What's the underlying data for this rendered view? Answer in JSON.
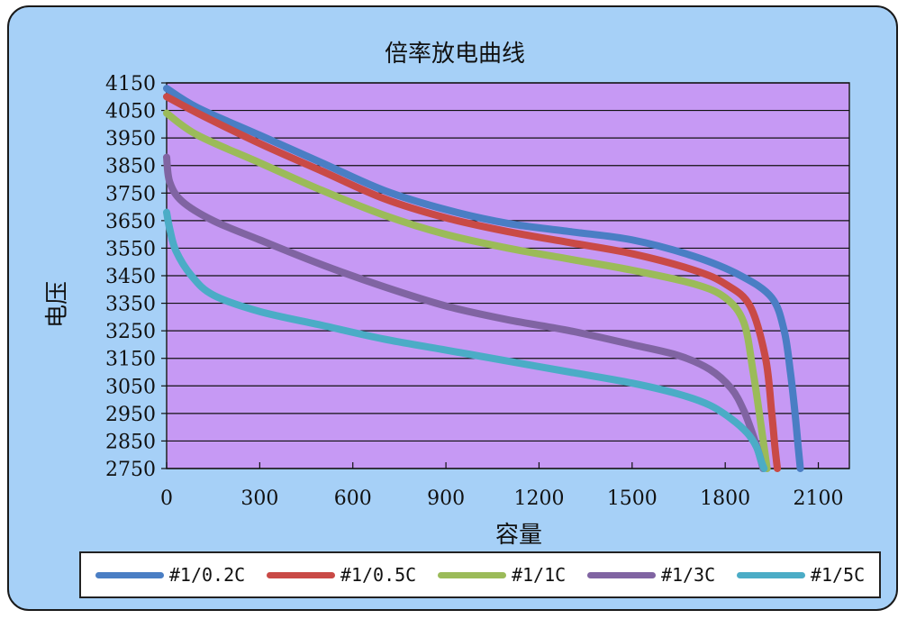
{
  "chart_data": {
    "type": "line",
    "title": "倍率放电曲线",
    "xlabel": "容量",
    "ylabel": "电压",
    "xlim": [
      0,
      2200
    ],
    "ylim": [
      2750,
      4150
    ],
    "x_ticks": [
      0,
      300,
      600,
      900,
      1200,
      1500,
      1800,
      2100
    ],
    "y_ticks": [
      2750,
      2850,
      2950,
      3050,
      3150,
      3250,
      3350,
      3450,
      3550,
      3650,
      3750,
      3850,
      3950,
      4050,
      4150
    ],
    "grid": "horizontal",
    "legend_position": "bottom",
    "series": [
      {
        "name": "#1/0.2C",
        "color": "#4a7ec4",
        "x": [
          0,
          100,
          300,
          500,
          700,
          900,
          1100,
          1300,
          1500,
          1700,
          1850,
          1950,
          1990,
          2010,
          2025,
          2035,
          2042
        ],
        "y": [
          4130,
          4060,
          3960,
          3860,
          3760,
          3690,
          3640,
          3610,
          3580,
          3520,
          3450,
          3370,
          3250,
          3100,
          2950,
          2830,
          2750
        ]
      },
      {
        "name": "#1/0.5C",
        "color": "#c94a46",
        "x": [
          0,
          100,
          300,
          500,
          700,
          900,
          1100,
          1300,
          1500,
          1700,
          1800,
          1880,
          1930,
          1950,
          1960,
          1968
        ],
        "y": [
          4100,
          4040,
          3930,
          3830,
          3730,
          3660,
          3610,
          3570,
          3530,
          3470,
          3420,
          3340,
          3150,
          2950,
          2830,
          2750
        ]
      },
      {
        "name": "#1/1C",
        "color": "#9bbb59",
        "x": [
          0,
          100,
          300,
          500,
          700,
          900,
          1100,
          1300,
          1500,
          1700,
          1800,
          1860,
          1890,
          1910,
          1925,
          1935
        ],
        "y": [
          4040,
          3960,
          3860,
          3760,
          3670,
          3600,
          3550,
          3510,
          3470,
          3420,
          3370,
          3280,
          3100,
          2950,
          2830,
          2750
        ]
      },
      {
        "name": "#1/3C",
        "color": "#8064a2",
        "x": [
          0,
          10,
          50,
          150,
          300,
          500,
          700,
          900,
          1100,
          1300,
          1500,
          1650,
          1750,
          1820,
          1860,
          1890,
          1910,
          1922
        ],
        "y": [
          3880,
          3790,
          3720,
          3650,
          3580,
          3490,
          3410,
          3340,
          3290,
          3250,
          3200,
          3160,
          3110,
          3040,
          2960,
          2870,
          2800,
          2750
        ]
      },
      {
        "name": "#1/5C",
        "color": "#4bacc6",
        "x": [
          0,
          10,
          30,
          80,
          150,
          300,
          500,
          700,
          900,
          1100,
          1300,
          1500,
          1650,
          1750,
          1820,
          1870,
          1900,
          1915,
          1925
        ],
        "y": [
          3680,
          3620,
          3540,
          3450,
          3380,
          3320,
          3270,
          3220,
          3180,
          3140,
          3100,
          3060,
          3020,
          2980,
          2930,
          2880,
          2830,
          2780,
          2750
        ]
      }
    ]
  }
}
